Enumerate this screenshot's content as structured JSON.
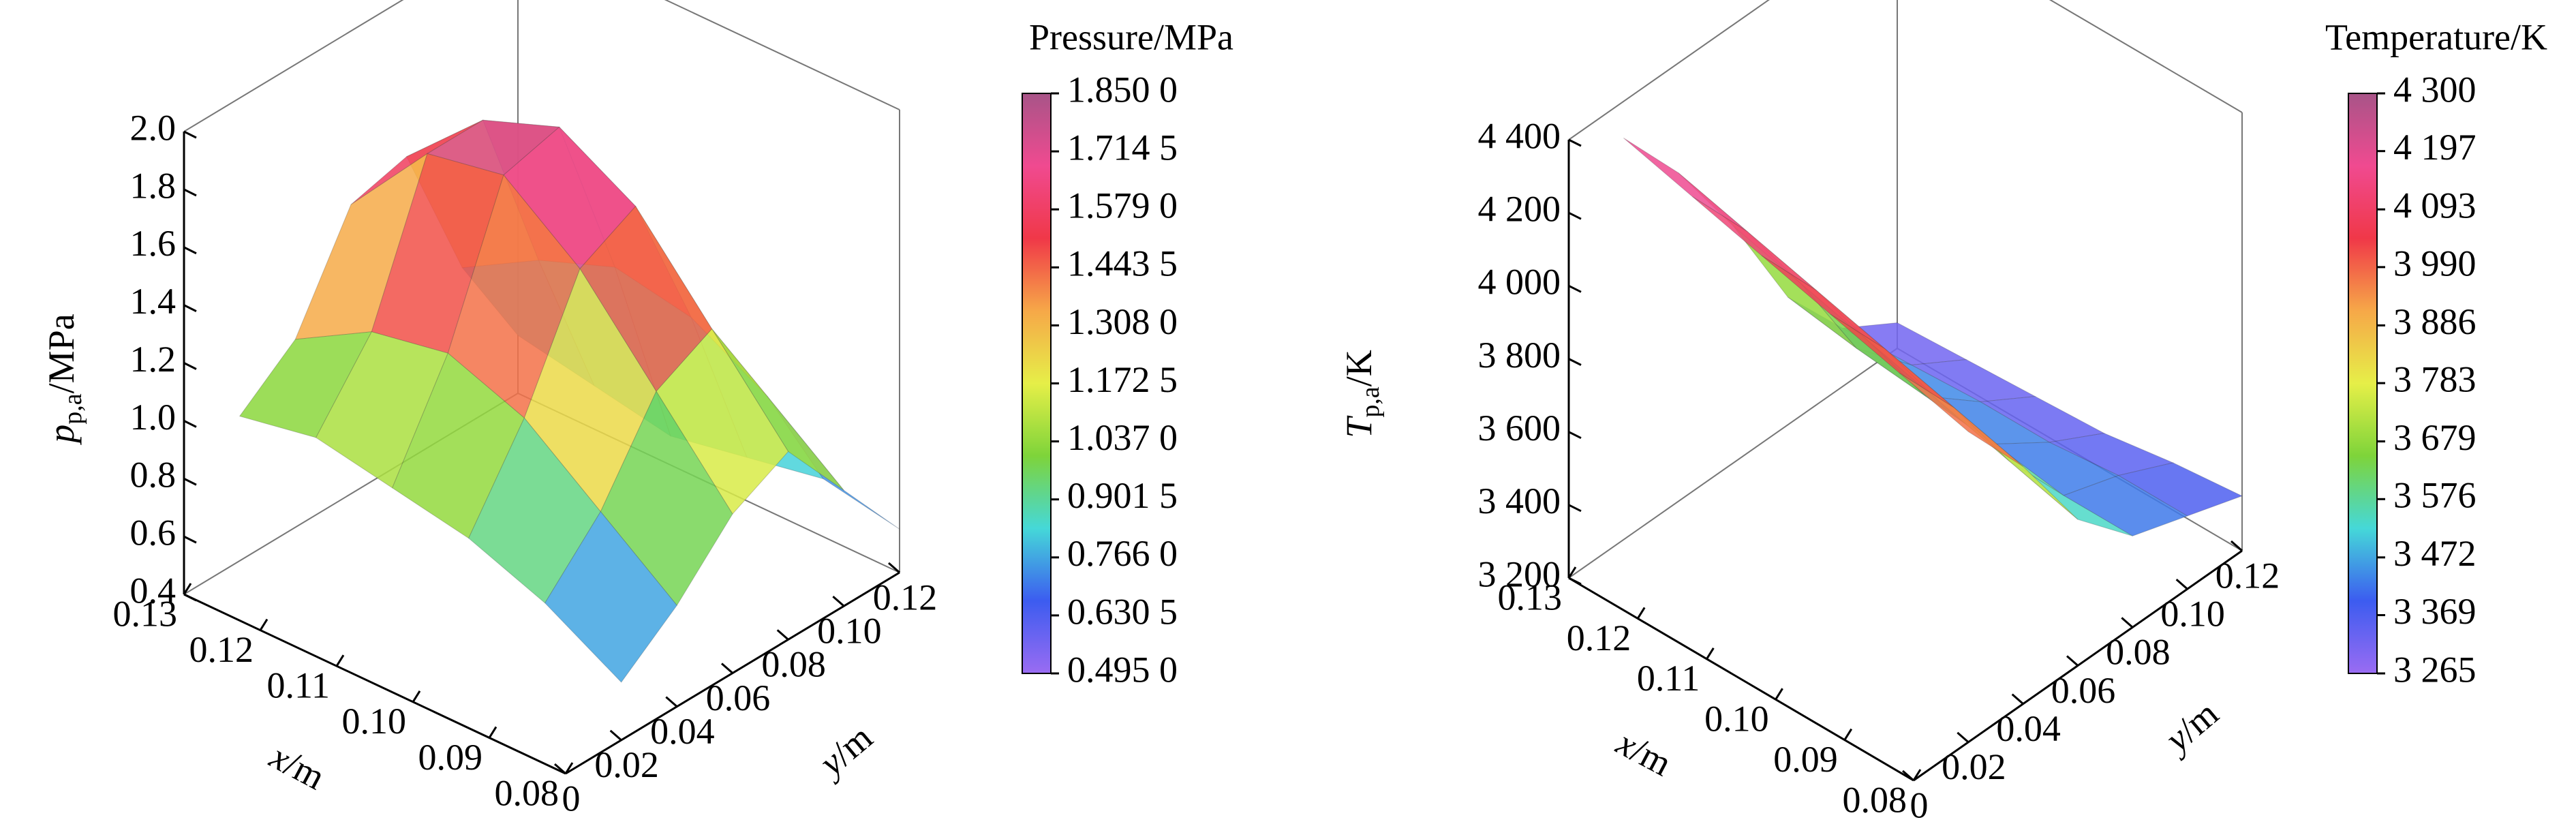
{
  "chart_data": [
    {
      "type": "surface3d",
      "xlabel": {
        "symbol": "x",
        "unit": "/m"
      },
      "ylabel": {
        "symbol": "y",
        "unit": "/m"
      },
      "zlabel": {
        "symbol": "p",
        "subscript": "p,a",
        "unit": "/MPa"
      },
      "x": [
        0.08,
        0.09,
        0.1,
        0.11,
        0.12,
        0.13
      ],
      "y": [
        0.02,
        0.04,
        0.06,
        0.08,
        0.1,
        0.12
      ],
      "z": [
        [
          0.6,
          0.75,
          0.95,
          1.05,
          0.8,
          0.55
        ],
        [
          0.75,
          0.95,
          1.25,
          1.35,
          1.0,
          0.6
        ],
        [
          0.85,
          1.15,
          1.55,
          1.65,
          1.15,
          0.55
        ],
        [
          0.9,
          1.25,
          1.75,
          1.8,
          1.2,
          0.5
        ],
        [
          0.95,
          1.2,
          1.7,
          1.7,
          1.1,
          0.55
        ],
        [
          0.9,
          1.05,
          1.4,
          1.45,
          0.95,
          0.6
        ]
      ],
      "xlim": [
        0.08,
        0.13
      ],
      "xticks": [
        0.08,
        0.09,
        {
          "value": 0.1,
          "label": "0.10"
        },
        0.11,
        0.12,
        0.13
      ],
      "ylim": [
        0,
        0.12
      ],
      "yticks": [
        0,
        0.02,
        0.04,
        0.06,
        0.08,
        {
          "value": 0.1,
          "label": "0.10"
        },
        0.12
      ],
      "zlim": [
        0.4,
        2.0
      ],
      "zticks": [
        0.4,
        0.6,
        0.8,
        {
          "value": 1.0,
          "label": "1.0"
        },
        1.2,
        1.4,
        1.6,
        1.8,
        {
          "value": 2.0,
          "label": "2.0"
        }
      ],
      "colorbar_title": "Pressure/MPa",
      "clim": [
        0.495,
        1.85
      ],
      "cticks": [
        {
          "value": 0.495,
          "label": "0.495 0"
        },
        {
          "value": 0.6305,
          "label": "0.630 5"
        },
        {
          "value": 0.766,
          "label": "0.766 0"
        },
        {
          "value": 0.9015,
          "label": "0.901 5"
        },
        {
          "value": 1.037,
          "label": "1.037 0"
        },
        {
          "value": 1.1725,
          "label": "1.172 5"
        },
        {
          "value": 1.308,
          "label": "1.308 0"
        },
        {
          "value": 1.4435,
          "label": "1.443 5"
        },
        {
          "value": 1.579,
          "label": "1.579 0"
        },
        {
          "value": 1.7145,
          "label": "1.714 5"
        },
        {
          "value": 1.85,
          "label": "1.850 0"
        }
      ],
      "colormap": [
        "#9a6cf2",
        "#3c5cf0",
        "#45d8d8",
        "#7ed43a",
        "#e6ef48",
        "#f6a848",
        "#f03848",
        "#f04a90",
        "#a85488"
      ]
    },
    {
      "type": "surface3d",
      "xlabel": {
        "symbol": "x",
        "unit": "/m"
      },
      "ylabel": {
        "symbol": "y",
        "unit": "/m"
      },
      "zlabel": {
        "symbol": "T",
        "subscript": "p,a",
        "unit": "/K"
      },
      "x": [
        0.08,
        0.09,
        0.1,
        0.11,
        0.12,
        0.13
      ],
      "y": [
        0.02,
        0.04,
        0.06,
        0.08,
        0.1,
        0.12
      ],
      "z": [
        [
          4050,
          3850,
          3600,
          3450,
          3400,
          3350
        ],
        [
          4100,
          3900,
          3650,
          3450,
          3400,
          3330
        ],
        [
          4150,
          3950,
          3700,
          3480,
          3380,
          3300
        ],
        [
          4200,
          4000,
          3750,
          3500,
          3380,
          3290
        ],
        [
          4250,
          4050,
          3800,
          3520,
          3370,
          3280
        ],
        [
          4300,
          4100,
          3850,
          3550,
          3360,
          3270
        ]
      ],
      "xlim": [
        0.08,
        0.13
      ],
      "xticks": [
        0.08,
        0.09,
        {
          "value": 0.1,
          "label": "0.10"
        },
        0.11,
        0.12,
        0.13
      ],
      "ylim": [
        0,
        0.12
      ],
      "yticks": [
        0,
        0.02,
        0.04,
        0.06,
        0.08,
        {
          "value": 0.1,
          "label": "0.10"
        },
        0.12
      ],
      "zlim": [
        3200,
        4400
      ],
      "zticks": [
        {
          "value": 3200,
          "label": "3 200"
        },
        {
          "value": 3400,
          "label": "3 400"
        },
        {
          "value": 3600,
          "label": "3 600"
        },
        {
          "value": 3800,
          "label": "3 800"
        },
        {
          "value": 4000,
          "label": "4 000"
        },
        {
          "value": 4200,
          "label": "4 200"
        },
        {
          "value": 4400,
          "label": "4 400"
        }
      ],
      "colorbar_title": "Temperature/K",
      "clim": [
        3265,
        4300
      ],
      "cticks": [
        {
          "value": 3265,
          "label": "3 265"
        },
        {
          "value": 3369,
          "label": "3 369"
        },
        {
          "value": 3472,
          "label": "3 472"
        },
        {
          "value": 3576,
          "label": "3 576"
        },
        {
          "value": 3679,
          "label": "3 679"
        },
        {
          "value": 3783,
          "label": "3 783"
        },
        {
          "value": 3886,
          "label": "3 886"
        },
        {
          "value": 3990,
          "label": "3 990"
        },
        {
          "value": 4093,
          "label": "4 093"
        },
        {
          "value": 4197,
          "label": "4 197"
        },
        {
          "value": 4300,
          "label": "4 300"
        }
      ],
      "colormap": [
        "#9a6cf2",
        "#3c5cf0",
        "#45d8d8",
        "#7ed43a",
        "#e6ef48",
        "#f6a848",
        "#f03848",
        "#f04a90",
        "#a85488"
      ]
    }
  ]
}
